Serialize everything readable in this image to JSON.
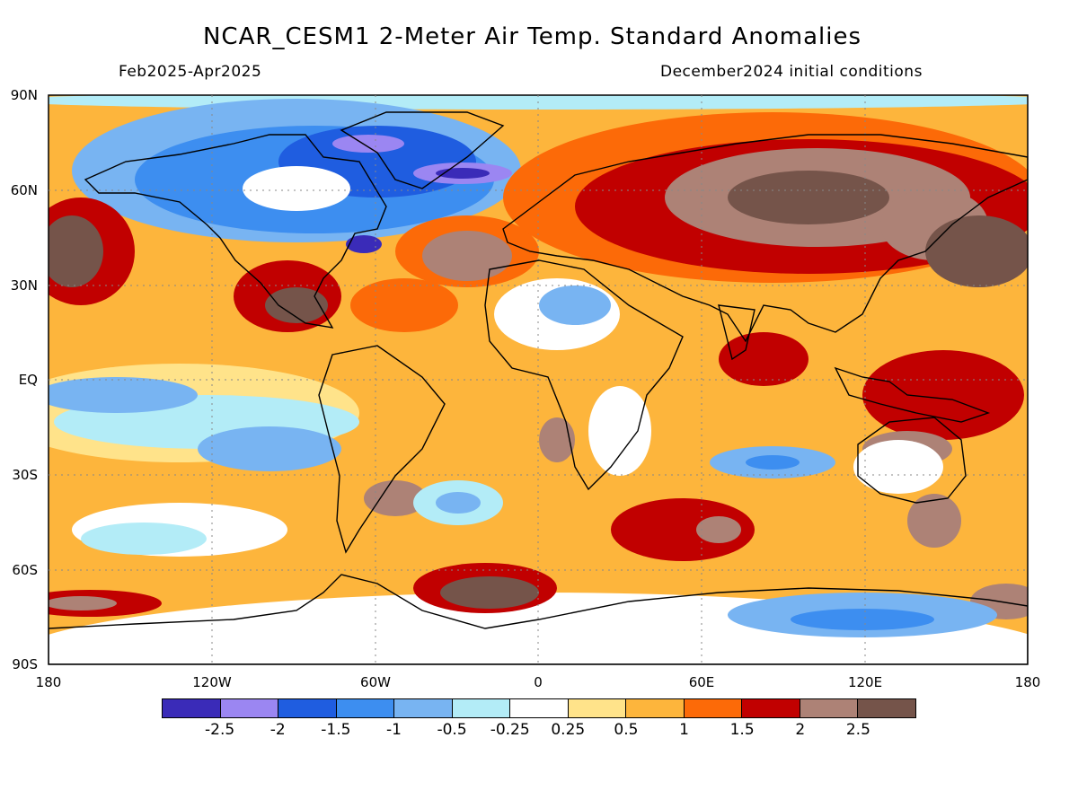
{
  "title": "NCAR_CESM1 2-Meter Air Temp. Standard Anomalies",
  "subtitle_left": "Feb2025-Apr2025",
  "subtitle_right": "December2024 initial conditions",
  "axes": {
    "lat_labels": [
      "90N",
      "60N",
      "30N",
      "EQ",
      "30S",
      "60S",
      "90S"
    ],
    "lon_labels": [
      "180",
      "120W",
      "60W",
      "0",
      "60E",
      "120E",
      "180"
    ]
  },
  "legend": {
    "colors": [
      "#3a2bb8",
      "#9b86f2",
      "#1f5de0",
      "#3d8ef0",
      "#78b4f2",
      "#b3ecf7",
      "#ffffff",
      "#ffe38a",
      "#fdb53c",
      "#fc6a08",
      "#c10000",
      "#ad8276",
      "#75544a"
    ],
    "labels": [
      "-2.5",
      "-2",
      "-1.5",
      "-1",
      "-0.5",
      "-0.25",
      "0.25",
      "0.5",
      "1",
      "1.5",
      "2",
      "2.5"
    ]
  },
  "map_colors": {
    "ocean_base": "#fdb53c",
    "coastline": "#000000",
    "grid": "#888888"
  }
}
